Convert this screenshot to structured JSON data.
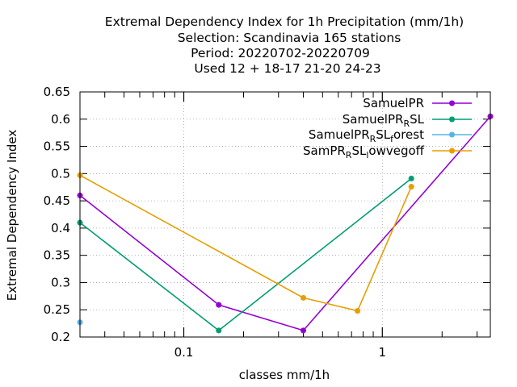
{
  "chart_data": {
    "type": "line",
    "title_lines": [
      "Extremal Dependency Index  for 1h Precipitation (mm/1h)",
      "Selection: Scandinavia    165 stations",
      "Period: 20220702-20220709",
      "Used  12 + 18-17 21-20 24-23"
    ],
    "xlabel": "classes mm/1h",
    "ylabel": "Extremal Dependency Index",
    "x_scale": "log",
    "xlim": [
      0.03,
      3.5
    ],
    "ylim": [
      0.2,
      0.65
    ],
    "grid": true,
    "legend_position": "top-right",
    "y_ticks": [
      {
        "value": 0.2,
        "label": "0.2"
      },
      {
        "value": 0.25,
        "label": "0.25"
      },
      {
        "value": 0.3,
        "label": "0.3"
      },
      {
        "value": 0.35,
        "label": "0.35"
      },
      {
        "value": 0.4,
        "label": "0.4"
      },
      {
        "value": 0.45,
        "label": "0.45"
      },
      {
        "value": 0.5,
        "label": "0.5"
      },
      {
        "value": 0.55,
        "label": "0.55"
      },
      {
        "value": 0.6,
        "label": "0.6"
      },
      {
        "value": 0.65,
        "label": "0.65"
      }
    ],
    "x_ticks": [
      {
        "value": 0.1,
        "label": "0.1"
      },
      {
        "value": 1,
        "label": "1"
      }
    ],
    "x_minor_ticks": [
      0.04,
      0.05,
      0.06,
      0.07,
      0.08,
      0.09,
      0.2,
      0.3,
      0.4,
      0.5,
      0.6,
      0.7,
      0.8,
      0.9,
      2,
      3
    ],
    "series": [
      {
        "name": "SamuelPR",
        "legend": {
          "base": "SamuelPR",
          "sub": "",
          "tail": ""
        },
        "color": "#9400d3",
        "x": [
          0.03,
          0.15,
          0.4,
          3.5
        ],
        "y": [
          0.46,
          0.259,
          0.212,
          0.605
        ]
      },
      {
        "name": "SamuelPR_RSL",
        "legend": {
          "base": "SamuelPR",
          "sub": "R",
          "tail": "SL"
        },
        "color": "#009e73",
        "x": [
          0.03,
          0.15,
          1.4
        ],
        "y": [
          0.41,
          0.212,
          0.491
        ]
      },
      {
        "name": "SamuelPR_RSL_forest",
        "legend": {
          "base": "SamuelPR",
          "sub": "R",
          "tail": "SL",
          "sub2": "f",
          "tail2": "orest"
        },
        "color": "#56b4e9",
        "x": [
          0.03
        ],
        "y": [
          0.227
        ]
      },
      {
        "name": "SamPR_RSL_lowvegoff",
        "legend": {
          "base": "SamPR",
          "sub": "R",
          "tail": "SL",
          "sub2": "l",
          "tail2": "owvegoff"
        },
        "color": "#e69f00",
        "x": [
          0.03,
          0.4,
          0.75,
          1.4
        ],
        "y": [
          0.497,
          0.272,
          0.248,
          0.476
        ]
      }
    ]
  }
}
